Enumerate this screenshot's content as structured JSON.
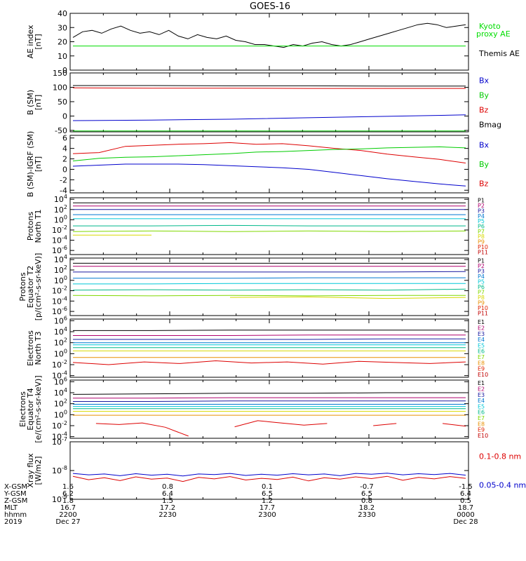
{
  "title": "GOES-16",
  "chart_data": [
    {
      "type": "line",
      "ylabel": [
        "AE index",
        "[nT]"
      ],
      "yticks": [
        "40",
        "30",
        "20",
        "10",
        "0"
      ],
      "ylim": [
        0,
        40
      ],
      "legend": [
        {
          "label": "Kyoto proxy AE",
          "color": "#00dd00"
        },
        {
          "label": "Themis AE",
          "color": "#000000"
        }
      ],
      "series": [
        {
          "name": "Themis AE",
          "color": "#000000",
          "values": [
            23,
            27,
            28,
            26,
            29,
            31,
            28,
            26,
            27,
            25,
            28,
            24,
            22,
            25,
            23,
            22,
            24,
            21,
            20,
            18,
            18,
            17,
            16,
            18,
            17,
            19,
            20,
            18,
            17,
            18,
            20,
            22,
            24,
            26,
            28,
            30,
            32,
            33,
            32,
            30,
            31,
            32
          ]
        },
        {
          "name": "Kyoto proxy AE",
          "color": "#00dd00",
          "values": [
            17,
            17,
            17,
            17,
            17,
            17,
            17,
            17,
            17,
            17,
            17,
            17,
            17,
            17,
            17,
            17,
            17,
            17,
            17,
            17,
            17,
            17,
            17,
            17,
            17,
            17,
            17,
            17,
            17,
            17,
            17,
            17,
            17,
            17,
            17,
            17,
            17,
            17,
            17,
            17,
            17,
            17
          ]
        }
      ]
    },
    {
      "type": "line",
      "ylabel": [
        "B (SM)",
        "[nT]"
      ],
      "yticks": [
        "150",
        "100",
        "50",
        "0",
        "-50"
      ],
      "ylim": [
        -55,
        150
      ],
      "legend": [
        {
          "label": "Bx",
          "color": "#0000cc"
        },
        {
          "label": "By",
          "color": "#00cc00"
        },
        {
          "label": "Bz",
          "color": "#dd0000"
        },
        {
          "label": "Bmag",
          "color": "#000000"
        }
      ],
      "series": [
        {
          "name": "Bmag",
          "color": "#000000",
          "values": [
            106,
            106,
            105,
            105,
            104,
            104
          ]
        },
        {
          "name": "Bz",
          "color": "#dd0000",
          "values": [
            98,
            97,
            97,
            96,
            96,
            96
          ]
        },
        {
          "name": "Bx",
          "color": "#0000cc",
          "values": [
            -16,
            -14,
            -11,
            -6,
            -1,
            4
          ]
        },
        {
          "name": "By",
          "color": "#00cc00",
          "values": [
            -52,
            -52,
            -52,
            -52,
            -52,
            -52
          ]
        }
      ]
    },
    {
      "type": "line",
      "ylabel": [
        "B (SM)-IGRF (SM)",
        "[nT]"
      ],
      "yticks": [
        "6",
        "4",
        "2",
        "0",
        "-2",
        "-4"
      ],
      "ylim": [
        -4.5,
        6.5
      ],
      "legend": [
        {
          "label": "Bx",
          "color": "#0000cc"
        },
        {
          "label": "By",
          "color": "#00cc00"
        },
        {
          "label": "Bz",
          "color": "#dd0000"
        }
      ],
      "series": [
        {
          "name": "Bz",
          "color": "#dd0000",
          "values": [
            3.0,
            3.2,
            4.4,
            4.6,
            4.8,
            4.9,
            5.1,
            4.8,
            4.9,
            4.5,
            4.0,
            3.6,
            2.9,
            2.4,
            1.9,
            1.2
          ]
        },
        {
          "name": "By",
          "color": "#00cc00",
          "values": [
            1.6,
            2.1,
            2.3,
            2.4,
            2.6,
            2.8,
            3.0,
            3.3,
            3.4,
            3.6,
            3.8,
            3.9,
            4.1,
            4.2,
            4.3,
            4.1
          ]
        },
        {
          "name": "Bx",
          "color": "#0000cc",
          "values": [
            0.6,
            0.8,
            1.0,
            1.0,
            1.0,
            0.9,
            0.7,
            0.5,
            0.3,
            0.0,
            -0.6,
            -1.2,
            -1.8,
            -2.3,
            -2.8,
            -3.2
          ]
        }
      ]
    },
    {
      "type": "line",
      "ylabel": [
        "Protons",
        "North T1"
      ],
      "yticks": [
        "10^4",
        "10^2",
        "10^0",
        "10^-2",
        "10^-4",
        "10^-6"
      ],
      "ylim": [
        -6.8,
        4.3
      ],
      "legend": [
        {
          "label": "P1",
          "color": "#000000"
        },
        {
          "label": "P2",
          "color": "#b0006e"
        },
        {
          "label": "P3",
          "color": "#1a1aa0"
        },
        {
          "label": "P4",
          "color": "#0078d0"
        },
        {
          "label": "P5",
          "color": "#00c8d8"
        },
        {
          "label": "P6",
          "color": "#00b88a"
        },
        {
          "label": "P7",
          "color": "#80d800"
        },
        {
          "label": "P8",
          "color": "#d8d800"
        },
        {
          "label": "P9",
          "color": "#e89000"
        },
        {
          "label": "P10",
          "color": "#e02000"
        },
        {
          "label": "P11",
          "color": "#c00000"
        }
      ],
      "series": [
        {
          "name": "P1",
          "color": "#000000",
          "values": [
            3.3,
            3.3,
            3.3,
            3.3,
            3.3,
            3.3
          ]
        },
        {
          "name": "P2",
          "color": "#b0006e",
          "values": [
            2.7,
            2.7,
            2.7,
            2.7,
            2.7,
            2.7
          ]
        },
        {
          "name": "P3",
          "color": "#1a1aa0",
          "values": [
            2.0,
            2.0,
            2.0,
            2.0,
            2.0,
            2.0
          ]
        },
        {
          "name": "P4",
          "color": "#0078d0",
          "values": [
            1.0,
            1.0,
            1.0,
            1.0,
            1.0,
            1.0
          ]
        },
        {
          "name": "P5",
          "color": "#00c8d8",
          "values": [
            0.2,
            0.2,
            0.2,
            0.2,
            0.2,
            0.2
          ]
        },
        {
          "name": "P6",
          "color": "#00b88a",
          "values": [
            -1.2,
            -1.2,
            -1.1,
            -1.2,
            -1.2,
            -1.2
          ]
        },
        {
          "name": "P7",
          "color": "#80d800",
          "values": [
            -2.3,
            -2.2,
            -2.3,
            -2.2,
            -2.3,
            -2.2
          ]
        },
        {
          "name": "P8",
          "color": "#d8d800",
          "values": [
            -3.0,
            -3.0,
            null,
            -3.0,
            null,
            null
          ]
        }
      ]
    },
    {
      "type": "line",
      "ylabel": [
        "Protons",
        "Equator T2",
        "[p/(cm²-s-sr-keV)]"
      ],
      "yticks": [
        "10^4",
        "10^2",
        "10^0",
        "10^-2",
        "10^-4",
        "10^-6"
      ],
      "ylim": [
        -6.8,
        4.3
      ],
      "legend": [
        {
          "label": "P1",
          "color": "#000000"
        },
        {
          "label": "P2",
          "color": "#b0006e"
        },
        {
          "label": "P3",
          "color": "#1a1aa0"
        },
        {
          "label": "P4",
          "color": "#0078d0"
        },
        {
          "label": "P5",
          "color": "#00c8d8"
        },
        {
          "label": "P6",
          "color": "#00b88a"
        },
        {
          "label": "P7",
          "color": "#80d800"
        },
        {
          "label": "P8",
          "color": "#d8d800"
        },
        {
          "label": "P9",
          "color": "#e89000"
        },
        {
          "label": "P10",
          "color": "#e02000"
        },
        {
          "label": "P11",
          "color": "#c00000"
        }
      ],
      "series": [
        {
          "name": "P1",
          "color": "#000000",
          "values": [
            3.3,
            3.3,
            3.3,
            3.3,
            3.3,
            3.3
          ]
        },
        {
          "name": "P2",
          "color": "#b0006e",
          "values": [
            2.7,
            2.7,
            2.7,
            2.7,
            2.7,
            2.7
          ]
        },
        {
          "name": "P3",
          "color": "#1a1aa0",
          "values": [
            1.6,
            1.6,
            1.6,
            1.6,
            1.6,
            1.7
          ]
        },
        {
          "name": "P4",
          "color": "#0078d0",
          "values": [
            0.4,
            0.4,
            0.4,
            0.5,
            0.5,
            0.5
          ]
        },
        {
          "name": "P5",
          "color": "#00c8d8",
          "values": [
            -0.7,
            -0.7,
            -0.6,
            -0.6,
            -0.6,
            -0.6
          ]
        },
        {
          "name": "P6",
          "color": "#00b88a",
          "values": [
            -1.9,
            -1.8,
            -1.9,
            -1.8,
            -1.9,
            -1.7
          ]
        },
        {
          "name": "P7",
          "color": "#80d800",
          "values": [
            -2.9,
            -3.0,
            -2.9,
            -3.0,
            -2.9,
            -2.9
          ]
        },
        {
          "name": "P8",
          "color": "#d8d800",
          "values": [
            -3.2,
            null,
            -3.3,
            -3.2,
            -3.5,
            -3.3
          ]
        }
      ]
    },
    {
      "type": "line",
      "ylabel": [
        "Electrons",
        "North T3"
      ],
      "yticks": [
        "10^6",
        "10^4",
        "10^2",
        "10^0",
        "10^-2",
        "10^-4"
      ],
      "ylim": [
        -4.3,
        6.3
      ],
      "legend": [
        {
          "label": "E1",
          "color": "#000000"
        },
        {
          "label": "E2",
          "color": "#b0006e"
        },
        {
          "label": "E3",
          "color": "#1a1aa0"
        },
        {
          "label": "E4",
          "color": "#0078d0"
        },
        {
          "label": "E5",
          "color": "#00c8d8"
        },
        {
          "label": "E6",
          "color": "#00b88a"
        },
        {
          "label": "E7",
          "color": "#80d800"
        },
        {
          "label": "E8",
          "color": "#e89000"
        },
        {
          "label": "E9",
          "color": "#e02000"
        },
        {
          "label": "E10",
          "color": "#c00000"
        }
      ],
      "series": [
        {
          "name": "E1",
          "color": "#000000",
          "values": [
            4.2,
            4.2,
            4.3,
            4.3,
            4.3,
            4.3
          ]
        },
        {
          "name": "E2",
          "color": "#b0006e",
          "values": [
            3.3,
            3.3,
            3.3,
            3.4,
            3.4,
            3.4
          ]
        },
        {
          "name": "E3",
          "color": "#1a1aa0",
          "values": [
            2.6,
            2.6,
            2.6,
            2.6,
            2.7,
            2.7
          ]
        },
        {
          "name": "E4",
          "color": "#0078d0",
          "values": [
            2.0,
            2.0,
            2.0,
            2.0,
            2.0,
            2.0
          ]
        },
        {
          "name": "E5",
          "color": "#00c8d8",
          "values": [
            1.6,
            1.6,
            1.6,
            1.6,
            1.6,
            1.6
          ]
        },
        {
          "name": "E6",
          "color": "#00b88a",
          "values": [
            1.1,
            1.1,
            1.1,
            1.1,
            1.1,
            1.1
          ]
        },
        {
          "name": "E7",
          "color": "#d8d800",
          "values": [
            0.5,
            0.5,
            0.5,
            0.5,
            0.5,
            0.5
          ]
        },
        {
          "name": "E8",
          "color": "#e89000",
          "values": [
            -0.7,
            -0.7,
            -0.7,
            -0.7,
            -0.7,
            -0.7
          ]
        },
        {
          "name": "E9",
          "color": "#dd0000",
          "values": [
            -1.6,
            -2.0,
            -1.5,
            -1.8,
            -1.3,
            -1.7,
            -1.5,
            -1.9,
            -1.4,
            -1.6,
            -1.8,
            -1.5
          ]
        }
      ]
    },
    {
      "type": "line",
      "ylabel": [
        "Electrons",
        "Equator T4",
        "[e/(cm²-s-sr-keV)]"
      ],
      "yticks": [
        "10^6",
        "10^4",
        "10^2",
        "10^0",
        "10^-2",
        "10^-4"
      ],
      "ylim": [
        -4.3,
        6.3
      ],
      "legend": [
        {
          "label": "E1",
          "color": "#000000"
        },
        {
          "label": "E2",
          "color": "#b0006e"
        },
        {
          "label": "E3",
          "color": "#1a1aa0"
        },
        {
          "label": "E4",
          "color": "#0078d0"
        },
        {
          "label": "E5",
          "color": "#00c8d8"
        },
        {
          "label": "E6",
          "color": "#00b88a"
        },
        {
          "label": "E7",
          "color": "#80d800"
        },
        {
          "label": "E8",
          "color": "#e89000"
        },
        {
          "label": "E9",
          "color": "#e02000"
        },
        {
          "label": "E10",
          "color": "#c00000"
        }
      ],
      "series": [
        {
          "name": "E1",
          "color": "#000000",
          "values": [
            3.7,
            3.8,
            3.9,
            3.9,
            4.0,
            4.0
          ]
        },
        {
          "name": "E2",
          "color": "#b0006e",
          "values": [
            3.0,
            3.0,
            3.1,
            3.1,
            3.1,
            3.1
          ]
        },
        {
          "name": "E3",
          "color": "#1a1aa0",
          "values": [
            2.4,
            2.4,
            2.5,
            2.5,
            2.5,
            2.5
          ]
        },
        {
          "name": "E4",
          "color": "#0078d0",
          "values": [
            1.9,
            1.9,
            1.9,
            1.9,
            1.9,
            1.9
          ]
        },
        {
          "name": "E5",
          "color": "#00c8d8",
          "values": [
            1.5,
            1.5,
            1.5,
            1.5,
            1.5,
            1.5
          ]
        },
        {
          "name": "E6",
          "color": "#00b88a",
          "values": [
            1.1,
            1.1,
            1.1,
            1.1,
            1.1,
            1.1
          ]
        },
        {
          "name": "E7",
          "color": "#d8d800",
          "values": [
            0.6,
            0.6,
            0.6,
            0.6,
            0.6,
            0.6
          ]
        },
        {
          "name": "E8",
          "color": "#e89000",
          "values": [
            -0.1,
            -0.1,
            -0.1,
            -0.1,
            -0.1,
            -0.1
          ]
        },
        {
          "name": "E9",
          "color": "#dd0000",
          "values": [
            null,
            -1.6,
            -1.8,
            -1.5,
            -2.3,
            -3.9,
            null,
            -2.2,
            -1.1,
            -1.5,
            -1.9,
            -1.6,
            null,
            -2.0,
            -1.6,
            null,
            -1.6,
            -2.1
          ]
        }
      ]
    },
    {
      "type": "line",
      "ylabel": [
        "Xray flux",
        "[W/m2]"
      ],
      "yticks": [
        "10^-7",
        "10^-8",
        "10^-9"
      ],
      "ylim": [
        -9.0,
        -7.0
      ],
      "legend": [
        {
          "label": "0.1-0.8 nm",
          "color": "#dd0000"
        },
        {
          "label": "0.05-0.4 nm",
          "color": "#0000cc"
        }
      ],
      "series": [
        {
          "name": "0.05-0.4 nm",
          "color": "#0000cc",
          "values": [
            -8.1,
            -8.15,
            -8.12,
            -8.18,
            -8.11,
            -8.16,
            -8.13,
            -8.19,
            -8.12,
            -8.14,
            -8.1,
            -8.17,
            -8.13,
            -8.16,
            -8.11,
            -8.15,
            -8.12,
            -8.18,
            -8.1,
            -8.13,
            -8.09,
            -8.15,
            -8.11,
            -8.14,
            -8.1,
            -8.16
          ]
        },
        {
          "name": "0.1-0.8 nm",
          "color": "#dd0000",
          "values": [
            -8.2,
            -8.32,
            -8.25,
            -8.35,
            -8.22,
            -8.3,
            -8.26,
            -8.38,
            -8.24,
            -8.29,
            -8.21,
            -8.33,
            -8.27,
            -8.31,
            -8.23,
            -8.36,
            -8.25,
            -8.3,
            -8.22,
            -8.28,
            -8.2,
            -8.34,
            -8.24,
            -8.29,
            -8.21,
            -8.27
          ]
        }
      ]
    }
  ],
  "x_axis": {
    "row_labels": [
      "X-GSM",
      "Y-GSM",
      "Z-GSM",
      "MLT",
      "hhmm",
      "2019"
    ],
    "columns": [
      [
        "1.6",
        "6.2",
        "1.8",
        "16.7",
        "2200",
        "Dec 27"
      ],
      [
        "0.8",
        "6.4",
        "1.5",
        "17.2",
        "2230",
        ""
      ],
      [
        "0.1",
        "6.5",
        "1.2",
        "17.7",
        "2300",
        ""
      ],
      [
        "-0.7",
        "6.5",
        "0.8",
        "18.2",
        "2330",
        ""
      ],
      [
        "-1.5",
        "6.4",
        "0.5",
        "18.7",
        "0000",
        "Dec 28"
      ]
    ]
  }
}
